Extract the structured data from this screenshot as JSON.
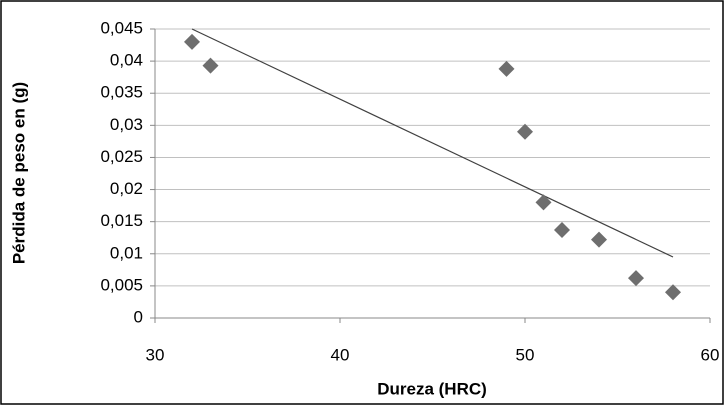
{
  "chart_data": {
    "type": "scatter",
    "x_label": "Dureza (HRC)",
    "y_label": "Pérdida de peso en (g)",
    "x": [
      32,
      33,
      49,
      50,
      51,
      52,
      54,
      56,
      58
    ],
    "values": [
      0.043,
      0.0393,
      0.0388,
      0.029,
      0.018,
      0.0137,
      0.0122,
      0.0062,
      0.004
    ],
    "color": "#6e6e6e",
    "trendline": {
      "x": [
        32,
        58
      ],
      "y": [
        0.045,
        0.0095
      ],
      "color": "#404040"
    },
    "xlim": [
      30,
      60
    ],
    "xticks": [
      30,
      40,
      50,
      60
    ],
    "ylim": [
      0,
      0.045
    ],
    "yticks": [
      0,
      {
        "value": 0.005,
        "label": "0,005"
      },
      {
        "value": 0.01,
        "label": "0,01"
      },
      {
        "value": 0.015,
        "label": "0,015"
      },
      {
        "value": 0.02,
        "label": "0,02"
      },
      {
        "value": 0.025,
        "label": "0,025"
      },
      {
        "value": 0.03,
        "label": "0,03"
      },
      {
        "value": 0.035,
        "label": "0,035"
      },
      {
        "value": 0.04,
        "label": "0,04"
      },
      {
        "value": 0.045,
        "label": "0,045"
      }
    ],
    "grid": true
  }
}
